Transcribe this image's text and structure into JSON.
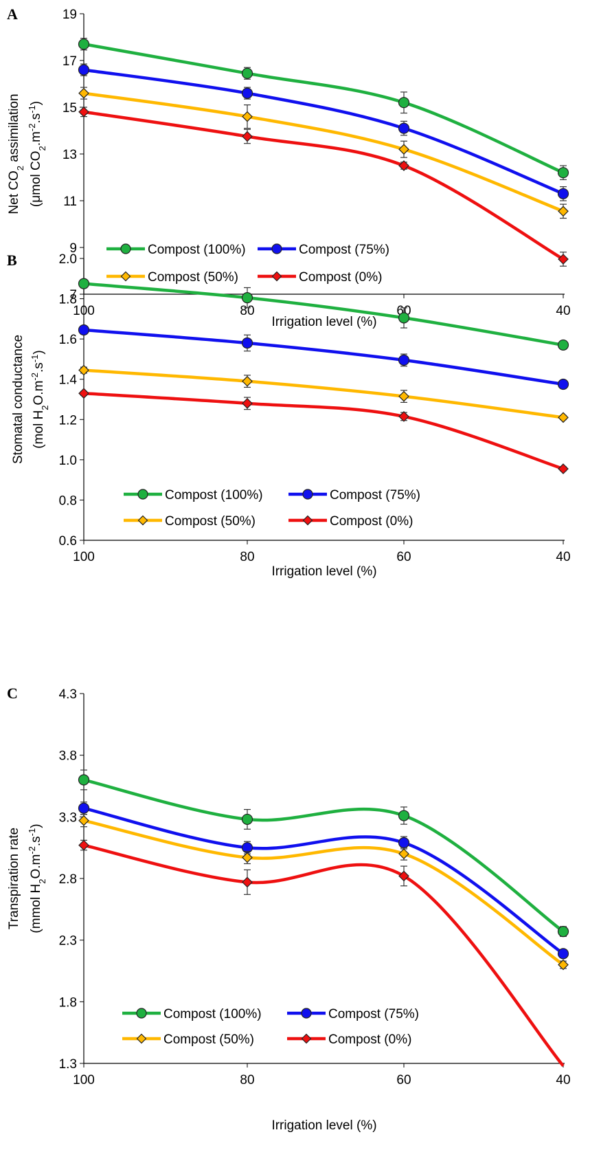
{
  "colors": {
    "compost_100": "#1fb040",
    "compost_75": "#1010ee",
    "compost_50": "#ffb800",
    "compost_0": "#ee1010"
  },
  "chart_data": [
    {
      "panel": "A",
      "type": "line",
      "x": [
        100,
        80,
        60,
        40
      ],
      "xlabel": "Irrigation level (%)",
      "ylabel_line1": "Net CO2 assimilation",
      "ylabel_line2": "(μmol CO2.m-2.s-1)",
      "ylim": [
        7,
        19
      ],
      "yticks": [
        "7",
        "9",
        "11",
        "13",
        "15",
        "17",
        "19"
      ],
      "xticks": [
        "100",
        "80",
        "60",
        "40"
      ],
      "grid": false,
      "legend_placement": "bottom-left",
      "series": [
        {
          "name": "Compost (100%)",
          "color_key": "compost_100",
          "marker": "circle",
          "values": [
            17.7,
            16.45,
            15.2,
            12.2
          ],
          "errors": [
            0.25,
            0.25,
            0.45,
            0.3
          ]
        },
        {
          "name": "Compost (75%)",
          "color_key": "compost_75",
          "marker": "circle",
          "values": [
            16.6,
            15.6,
            14.1,
            11.3
          ],
          "errors": [
            0.25,
            0.25,
            0.3,
            0.3
          ]
        },
        {
          "name": "Compost (50%)",
          "color_key": "compost_50",
          "marker": "diamond",
          "values": [
            15.6,
            14.6,
            13.2,
            10.55
          ],
          "errors": [
            0.25,
            0.5,
            0.35,
            0.3
          ]
        },
        {
          "name": "Compost (0%)",
          "color_key": "compost_0",
          "marker": "diamond",
          "values": [
            14.8,
            13.75,
            12.5,
            8.5
          ],
          "errors": [
            0.2,
            0.3,
            0.15,
            0.3
          ]
        }
      ]
    },
    {
      "panel": "B",
      "type": "line",
      "x": [
        100,
        80,
        60,
        40
      ],
      "xlabel": "Irrigation level (%)",
      "ylabel_line1": "Stomatal conductance",
      "ylabel_line2": "(mol H2O.m-2.s-1)",
      "ylim": [
        0.6,
        2.0
      ],
      "yticks": [
        "0.6",
        "0.8",
        "1.0",
        "1.2",
        "1.4",
        "1.6",
        "1.8",
        "2.0"
      ],
      "xticks": [
        "100",
        "80",
        "60",
        "40"
      ],
      "grid": false,
      "legend_placement": "bottom",
      "series": [
        {
          "name": "Compost (100%)",
          "color_key": "compost_100",
          "marker": "circle",
          "values": [
            1.875,
            1.805,
            1.705,
            1.57
          ],
          "errors": [
            0.02,
            0.05,
            0.05,
            0.02
          ]
        },
        {
          "name": "Compost (75%)",
          "color_key": "compost_75",
          "marker": "circle",
          "values": [
            1.645,
            1.58,
            1.495,
            1.375
          ],
          "errors": [
            0.02,
            0.04,
            0.03,
            0.015
          ]
        },
        {
          "name": "Compost (50%)",
          "color_key": "compost_50",
          "marker": "diamond",
          "values": [
            1.445,
            1.39,
            1.315,
            1.21
          ],
          "errors": [
            0.015,
            0.03,
            0.03,
            0.01
          ]
        },
        {
          "name": "Compost (0%)",
          "color_key": "compost_0",
          "marker": "diamond",
          "values": [
            1.33,
            1.28,
            1.215,
            0.955
          ],
          "errors": [
            0.01,
            0.03,
            0.02,
            0.01
          ]
        }
      ]
    },
    {
      "panel": "C",
      "type": "line",
      "x": [
        100,
        80,
        60,
        40
      ],
      "xlabel": "Irrigation level (%)",
      "ylabel_line1": "Transpiration rate",
      "ylabel_line2": "(mmol H2O.m-2.s-1)",
      "ylim": [
        1.3,
        4.3
      ],
      "yticks": [
        "1.3",
        "1.8",
        "2.3",
        "2.8",
        "3.3",
        "3.8",
        "4.3"
      ],
      "xticks": [
        "100",
        "80",
        "60",
        "40"
      ],
      "grid": false,
      "legend_placement": "bottom",
      "series": [
        {
          "name": "Compost (100%)",
          "color_key": "compost_100",
          "marker": "circle",
          "values": [
            3.6,
            3.28,
            3.31,
            2.37
          ],
          "errors": [
            0.08,
            0.08,
            0.07,
            0.04
          ]
        },
        {
          "name": "Compost (75%)",
          "color_key": "compost_75",
          "marker": "circle",
          "values": [
            3.37,
            3.05,
            3.09,
            2.19
          ],
          "errors": [
            0.05,
            0.05,
            0.05,
            0.03
          ]
        },
        {
          "name": "Compost (50%)",
          "color_key": "compost_50",
          "marker": "diamond",
          "values": [
            3.27,
            2.97,
            3.0,
            2.1
          ],
          "errors": [
            0.05,
            0.05,
            0.05,
            0.03
          ]
        },
        {
          "name": "Compost (0%)",
          "color_key": "compost_0",
          "marker": "diamond",
          "values": [
            3.07,
            2.77,
            2.82,
            1.28
          ],
          "errors": [
            0.04,
            0.1,
            0.08,
            0.0
          ]
        }
      ]
    }
  ]
}
